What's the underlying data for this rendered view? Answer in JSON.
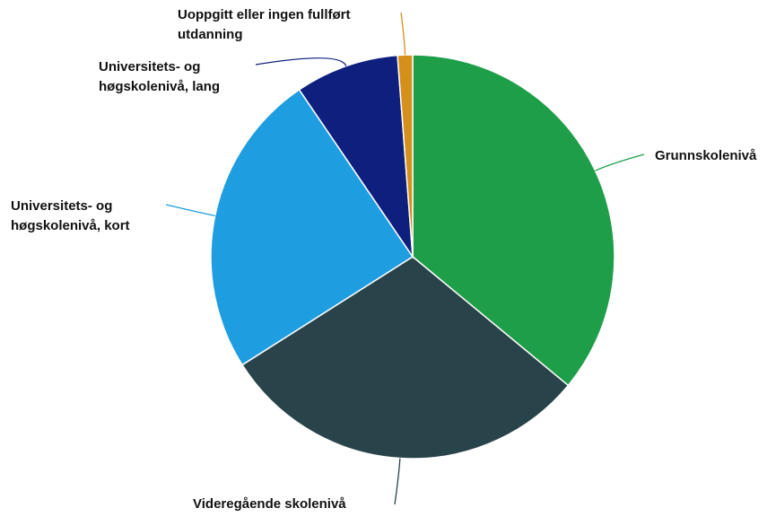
{
  "chart_data": {
    "type": "pie",
    "categories": [
      "Grunnskolenivå",
      "Videregående skolenivå",
      "Universitets- og høgskolenivå, kort",
      "Universitets- og høgskolenivå, lang",
      "Uoppgitt eller ingen fullført utdanning"
    ],
    "values": [
      36,
      30,
      24.5,
      8.3,
      1.2
    ],
    "colors": [
      "#1f9e4a",
      "#29434a",
      "#1e9de0",
      "#0f1f7d",
      "#d4901a"
    ]
  }
}
